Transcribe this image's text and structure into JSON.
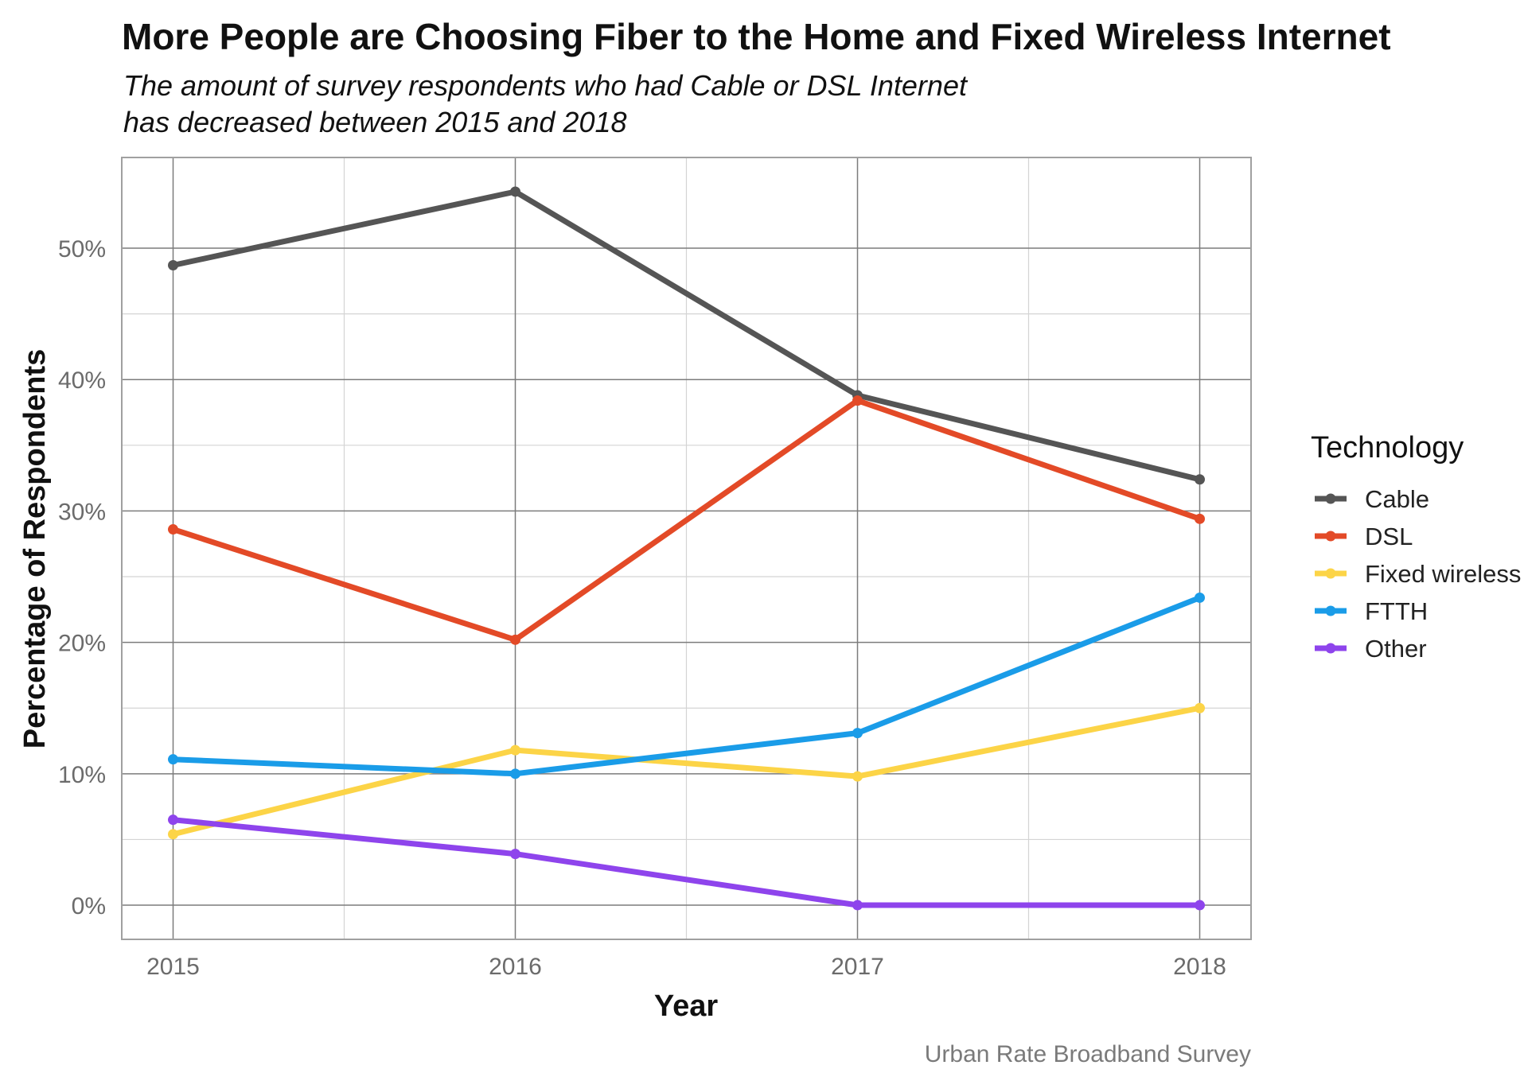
{
  "chart_data": {
    "type": "line",
    "title": "More People are Choosing Fiber to the Home and Fixed Wireless Internet",
    "subtitle": [
      "The amount of survey respondents who had Cable or DSL Internet",
      "has decreased between 2015 and 2018"
    ],
    "xlabel": "Year",
    "ylabel": "Percentage of Respondents",
    "caption": "Urban Rate Broadband Survey",
    "x": [
      2015,
      2016,
      2017,
      2018
    ],
    "x_tick_labels": [
      "2015",
      "2016",
      "2017",
      "2018"
    ],
    "ylim": [
      -2.6,
      56.9
    ],
    "y_ticks": [
      0,
      10,
      20,
      30,
      40,
      50
    ],
    "y_tick_labels": [
      "0%",
      "10%",
      "20%",
      "30%",
      "40%",
      "50%"
    ],
    "grid": true,
    "legend_title": "Technology",
    "legend_position": "right",
    "series": [
      {
        "name": "Cable",
        "color": "#555555",
        "values": [
          48.7,
          54.3,
          38.8,
          32.4
        ]
      },
      {
        "name": "DSL",
        "color": "#e34a27",
        "values": [
          28.6,
          20.2,
          38.4,
          29.4
        ]
      },
      {
        "name": "Fixed wireless",
        "color": "#fcd447",
        "values": [
          5.4,
          11.8,
          9.8,
          15.0
        ]
      },
      {
        "name": "FTTH",
        "color": "#1a9ce8",
        "values": [
          11.1,
          10.0,
          13.1,
          23.4
        ]
      },
      {
        "name": "Other",
        "color": "#8e44ec",
        "values": [
          6.5,
          3.9,
          0.0,
          0.0
        ]
      }
    ]
  }
}
